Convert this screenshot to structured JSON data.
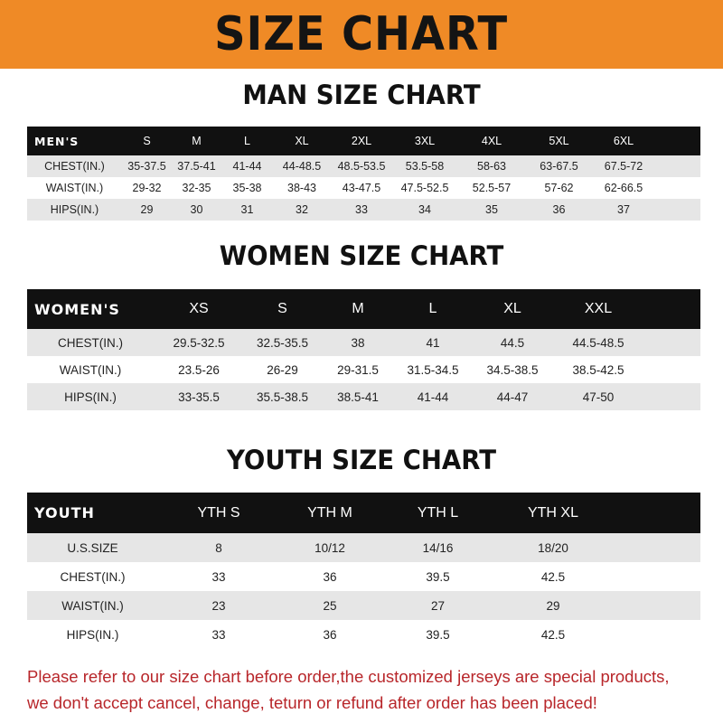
{
  "banner_title": "SIZE CHART",
  "men": {
    "title": "MAN SIZE CHART",
    "header_label": "MEN'S",
    "sizes": [
      "S",
      "M",
      "L",
      "XL",
      "2XL",
      "3XL",
      "4XL",
      "5XL",
      "6XL"
    ],
    "rows": [
      {
        "label": "CHEST(IN.)",
        "values": [
          "35-37.5",
          "37.5-41",
          "41-44",
          "44-48.5",
          "48.5-53.5",
          "53.5-58",
          "58-63",
          "63-67.5",
          "67.5-72"
        ]
      },
      {
        "label": "WAIST(IN.)",
        "values": [
          "29-32",
          "32-35",
          "35-38",
          "38-43",
          "43-47.5",
          "47.5-52.5",
          "52.5-57",
          "57-62",
          "62-66.5"
        ]
      },
      {
        "label": "HIPS(IN.)",
        "values": [
          "29",
          "30",
          "31",
          "32",
          "33",
          "34",
          "35",
          "36",
          "37"
        ]
      }
    ]
  },
  "women": {
    "title": "WOMEN SIZE CHART",
    "header_label": "WOMEN'S",
    "sizes": [
      "XS",
      "S",
      "M",
      "L",
      "XL",
      "XXL"
    ],
    "rows": [
      {
        "label": "CHEST(IN.)",
        "values": [
          "29.5-32.5",
          "32.5-35.5",
          "38",
          "41",
          "44.5",
          "44.5-48.5"
        ]
      },
      {
        "label": "WAIST(IN.)",
        "values": [
          "23.5-26",
          "26-29",
          "29-31.5",
          "31.5-34.5",
          "34.5-38.5",
          "38.5-42.5"
        ]
      },
      {
        "label": "HIPS(IN.)",
        "values": [
          "33-35.5",
          "35.5-38.5",
          "38.5-41",
          "41-44",
          "44-47",
          "47-50"
        ]
      }
    ]
  },
  "youth": {
    "title": "YOUTH SIZE CHART",
    "header_label": "YOUTH",
    "sizes": [
      "YTH S",
      "YTH M",
      "YTH L",
      "YTH XL"
    ],
    "rows": [
      {
        "label": "U.S.SIZE",
        "values": [
          "8",
          "10/12",
          "14/16",
          "18/20"
        ]
      },
      {
        "label": "CHEST(IN.)",
        "values": [
          "33",
          "36",
          "39.5",
          "42.5"
        ]
      },
      {
        "label": "WAIST(IN.)",
        "values": [
          "23",
          "25",
          "27",
          "29"
        ]
      },
      {
        "label": "HIPS(IN.)",
        "values": [
          "33",
          "36",
          "39.5",
          "42.5"
        ]
      }
    ]
  },
  "note": {
    "line1": "Please refer to our size chart before order,the customized jerseys are special products,",
    "line2": "we don't accept cancel, change, teturn or refund after order has been placed!"
  }
}
